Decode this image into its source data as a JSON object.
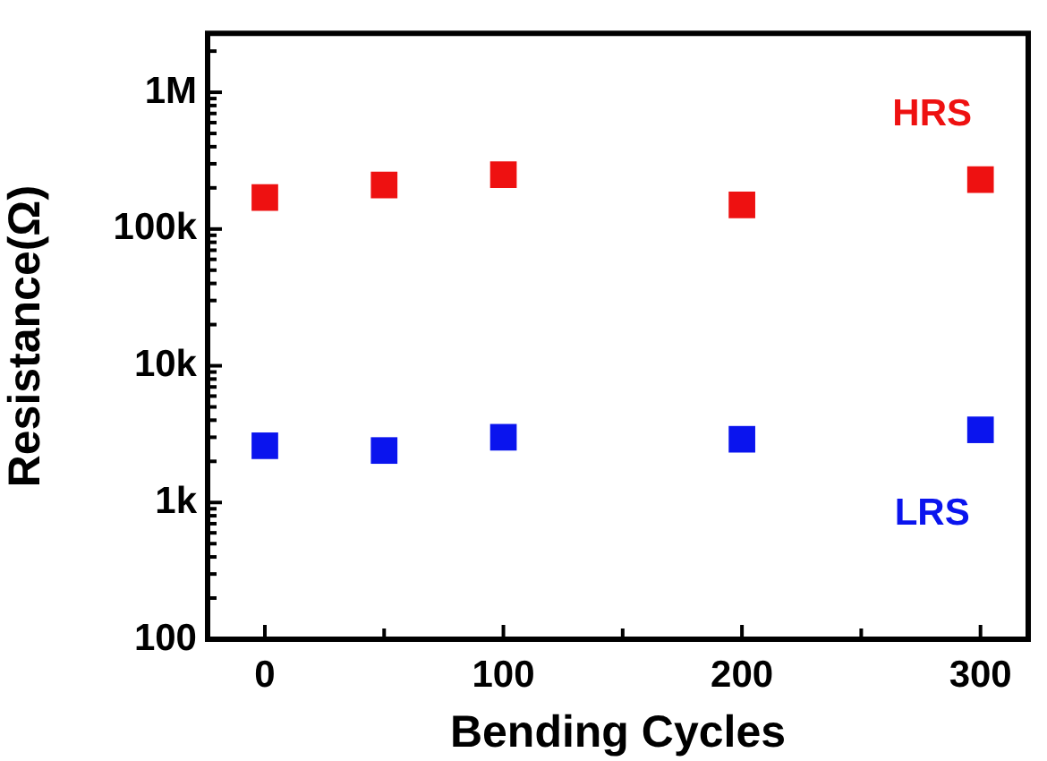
{
  "chart_data": {
    "type": "scatter",
    "xlabel": "Bending Cycles",
    "ylabel": "Resistance(Ω)",
    "log": "y",
    "marker": "square",
    "legend": false,
    "grid": false,
    "x": [
      0,
      50,
      100,
      200,
      300
    ],
    "series": [
      {
        "name": "HRS",
        "color": "#ee1111",
        "values": [
          170000,
          210000,
          250000,
          150000,
          230000
        ]
      },
      {
        "name": "LRS",
        "color": "#0a14ee",
        "values": [
          2600,
          2400,
          3000,
          2900,
          3400
        ]
      }
    ],
    "xlim": [
      -24,
      320
    ],
    "xticks": [
      0,
      {
        "value": 50,
        "label": null
      },
      100,
      {
        "value": 150,
        "label": null
      },
      200,
      {
        "value": 250,
        "label": null
      },
      300
    ],
    "ylim": [
      100,
      2700000
    ],
    "yticks": [
      {
        "value": 100,
        "label": "100"
      },
      {
        "value": 200,
        "label": null
      },
      {
        "value": 300,
        "label": null
      },
      {
        "value": 400,
        "label": null
      },
      {
        "value": 500,
        "label": null
      },
      {
        "value": 600,
        "label": null
      },
      {
        "value": 700,
        "label": null
      },
      {
        "value": 800,
        "label": null
      },
      {
        "value": 900,
        "label": null
      },
      {
        "value": 1000,
        "label": "1k"
      },
      {
        "value": 2000,
        "label": null
      },
      {
        "value": 3000,
        "label": null
      },
      {
        "value": 4000,
        "label": null
      },
      {
        "value": 5000,
        "label": null
      },
      {
        "value": 6000,
        "label": null
      },
      {
        "value": 7000,
        "label": null
      },
      {
        "value": 8000,
        "label": null
      },
      {
        "value": 9000,
        "label": null
      },
      {
        "value": 10000,
        "label": "10k"
      },
      {
        "value": 20000,
        "label": null
      },
      {
        "value": 30000,
        "label": null
      },
      {
        "value": 40000,
        "label": null
      },
      {
        "value": 50000,
        "label": null
      },
      {
        "value": 60000,
        "label": null
      },
      {
        "value": 70000,
        "label": null
      },
      {
        "value": 80000,
        "label": null
      },
      {
        "value": 90000,
        "label": null
      },
      {
        "value": 100000,
        "label": "100k"
      },
      {
        "value": 200000,
        "label": null
      },
      {
        "value": 300000,
        "label": null
      },
      {
        "value": 400000,
        "label": null
      },
      {
        "value": 500000,
        "label": null
      },
      {
        "value": 600000,
        "label": null
      },
      {
        "value": 700000,
        "label": null
      },
      {
        "value": 800000,
        "label": null
      },
      {
        "value": 900000,
        "label": null
      },
      {
        "value": 1000000,
        "label": "1M"
      },
      {
        "value": 2000000,
        "label": null
      }
    ]
  }
}
